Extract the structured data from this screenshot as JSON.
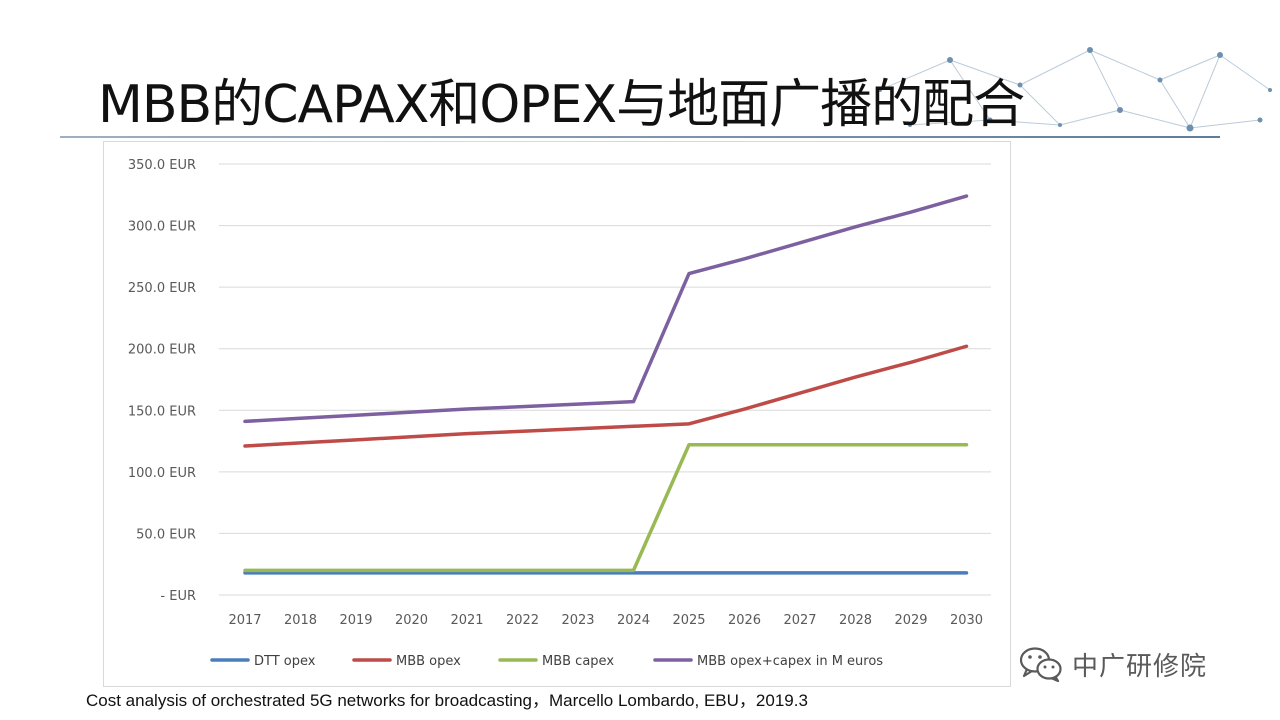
{
  "slide": {
    "title": "MBB的CAPAX和OPEX与地面广播的配合",
    "citation": "Cost analysis of orchestrated 5G networks for broadcasting，Marcello Lombardo, EBU，2019.3",
    "watermark": "中广研修院",
    "watermark_icon": "wechat-icon"
  },
  "chart_data": {
    "type": "line",
    "title": "",
    "xlabel": "",
    "ylabel": "",
    "x": [
      "2017",
      "2018",
      "2019",
      "2020",
      "2021",
      "2022",
      "2023",
      "2024",
      "2025",
      "2026",
      "2027",
      "2028",
      "2029",
      "2030"
    ],
    "ylim": [
      0,
      350
    ],
    "yticks": [
      0,
      50,
      100,
      150,
      200,
      250,
      300,
      350
    ],
    "ytick_labels": [
      "-  EUR",
      "50.0 EUR",
      "100.0 EUR",
      "150.0 EUR",
      "200.0 EUR",
      "250.0 EUR",
      "300.0 EUR",
      "350.0 EUR"
    ],
    "grid": true,
    "legend_position": "bottom",
    "series": [
      {
        "name": "DTT opex",
        "color": "#4a7ebb",
        "values": [
          18,
          18,
          18,
          18,
          18,
          18,
          18,
          18,
          18,
          18,
          18,
          18,
          18,
          18
        ]
      },
      {
        "name": "MBB opex",
        "color": "#be4b48",
        "values": [
          121,
          123.5,
          126,
          128.5,
          131,
          133,
          135,
          137,
          139,
          151,
          164,
          177,
          189,
          202
        ]
      },
      {
        "name": "MBB capex",
        "color": "#98b954",
        "values": [
          20,
          20,
          20,
          20,
          20,
          20,
          20,
          20,
          122,
          122,
          122,
          122,
          122,
          122
        ]
      },
      {
        "name": "MBB opex+capex in M euros",
        "color": "#7d60a0",
        "values": [
          141,
          143.5,
          146,
          148.5,
          151,
          153,
          155,
          157,
          261,
          273,
          286,
          299,
          311,
          324
        ]
      }
    ]
  }
}
